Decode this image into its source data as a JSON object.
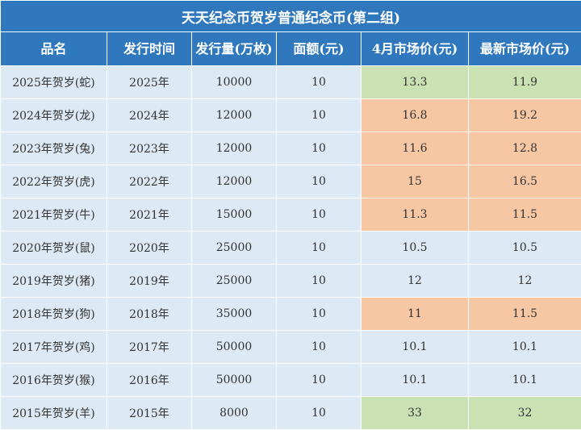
{
  "title": "天天纪念币贺岁普通纪念币(第二组)",
  "headers": [
    "品名",
    "发行时间",
    "发行量(万枚)",
    "面额(元)",
    "4月市场价(元)",
    "最新市场价(元)"
  ],
  "colors": {
    "header_bg": "#2f78bd",
    "row_bg": "#dde9f4",
    "highlight_green": "#c9e1b3",
    "highlight_orange": "#f7c6a3"
  },
  "rows": [
    {
      "name": "2025年贺岁(蛇)",
      "year": "2025年",
      "volume": "10000",
      "face": "10",
      "april_price": "13.3",
      "latest_price": "11.9",
      "highlight": "green"
    },
    {
      "name": "2024年贺岁(龙)",
      "year": "2024年",
      "volume": "12000",
      "face": "10",
      "april_price": "16.8",
      "latest_price": "19.2",
      "highlight": "orange"
    },
    {
      "name": "2023年贺岁(兔)",
      "year": "2023年",
      "volume": "12000",
      "face": "10",
      "april_price": "11.6",
      "latest_price": "12.8",
      "highlight": "orange"
    },
    {
      "name": "2022年贺岁(虎)",
      "year": "2022年",
      "volume": "12000",
      "face": "10",
      "april_price": "15",
      "latest_price": "16.5",
      "highlight": "orange"
    },
    {
      "name": "2021年贺岁(牛)",
      "year": "2021年",
      "volume": "15000",
      "face": "10",
      "april_price": "11.3",
      "latest_price": "11.5",
      "highlight": "orange"
    },
    {
      "name": "2020年贺岁(鼠)",
      "year": "2020年",
      "volume": "25000",
      "face": "10",
      "april_price": "10.5",
      "latest_price": "10.5",
      "highlight": "none"
    },
    {
      "name": "2019年贺岁(猪)",
      "year": "2019年",
      "volume": "25000",
      "face": "10",
      "april_price": "12",
      "latest_price": "12",
      "highlight": "none"
    },
    {
      "name": "2018年贺岁(狗)",
      "year": "2018年",
      "volume": "35000",
      "face": "10",
      "april_price": "11",
      "latest_price": "11.5",
      "highlight": "orange"
    },
    {
      "name": "2017年贺岁(鸡)",
      "year": "2017年",
      "volume": "50000",
      "face": "10",
      "april_price": "10.1",
      "latest_price": "10.1",
      "highlight": "none"
    },
    {
      "name": "2016年贺岁(猴)",
      "year": "2016年",
      "volume": "50000",
      "face": "10",
      "april_price": "10.1",
      "latest_price": "10.1",
      "highlight": "none"
    },
    {
      "name": "2015年贺岁(羊)",
      "year": "2015年",
      "volume": "8000",
      "face": "10",
      "april_price": "33",
      "latest_price": "32",
      "highlight": "green"
    }
  ]
}
